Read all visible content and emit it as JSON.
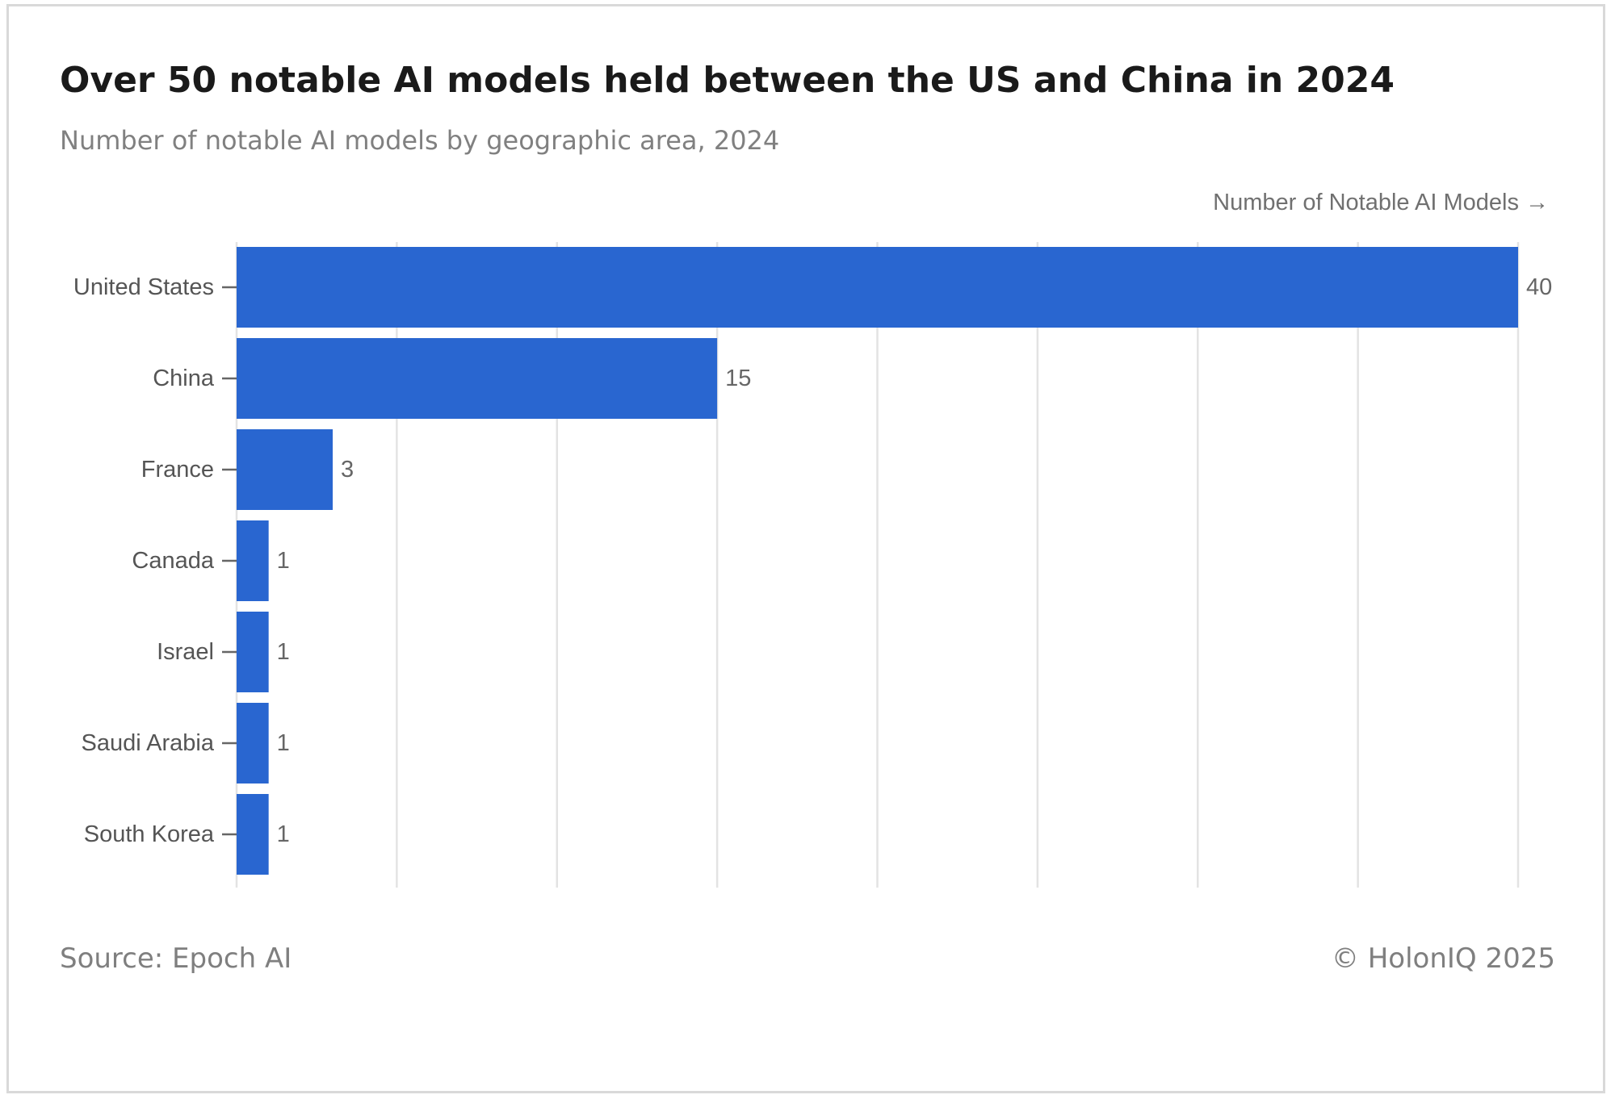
{
  "title": "Over 50 notable AI models held between the US and China in 2024",
  "subtitle": "Number of notable AI models by geographic area, 2024",
  "source": "Source: Epoch AI",
  "copyright": "© HolonIQ 2025",
  "colors": {
    "bar": "#2966d0",
    "grid": "#e3e3e3",
    "tick": "#666666"
  },
  "chart_data": {
    "type": "bar",
    "orientation": "horizontal",
    "categories": [
      "United States",
      "China",
      "France",
      "Canada",
      "Israel",
      "Saudi Arabia",
      "South Korea"
    ],
    "values": [
      40,
      15,
      3,
      1,
      1,
      1,
      1
    ],
    "data_labels": [
      "40",
      "15",
      "3",
      "1",
      "1",
      "1",
      "1"
    ],
    "xlabel": "Number of Notable AI Models →",
    "ylabel": "",
    "xlim": [
      0,
      40
    ],
    "gridlines_at": [
      0,
      5,
      10,
      15,
      20,
      25,
      30,
      35,
      40
    ],
    "x_tick_labels_shown": false,
    "grid": true,
    "legend": "none"
  }
}
